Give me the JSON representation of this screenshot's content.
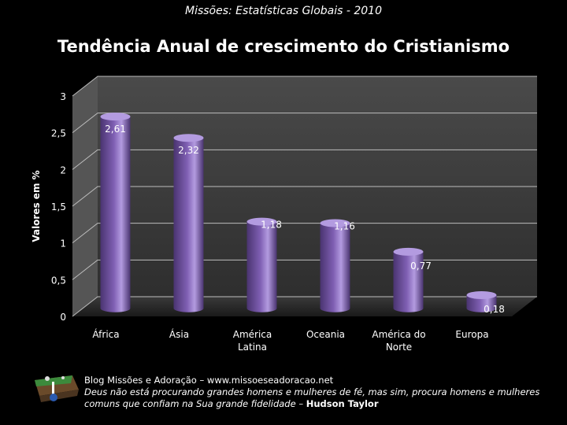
{
  "header": {
    "subtitle": "Missões: Estatísticas Globais - 2010"
  },
  "chart_data": {
    "type": "bar",
    "title": "Tendência Anual de crescimento do Cristianismo",
    "ylabel": "Valores em %",
    "xlabel": "",
    "ylim": [
      0,
      3
    ],
    "yticks": [
      "0",
      "0,5",
      "1",
      "1,5",
      "2",
      "2,5",
      "3"
    ],
    "yticks_values": [
      0,
      0.5,
      1,
      1.5,
      2,
      2.5,
      3
    ],
    "categories": [
      [
        "África"
      ],
      [
        "Ásia"
      ],
      [
        "América",
        "Latina"
      ],
      [
        "Oceania"
      ],
      [
        "América do",
        "Norte"
      ],
      [
        "Europa"
      ]
    ],
    "values": [
      2.61,
      2.32,
      1.18,
      1.16,
      0.77,
      0.18
    ],
    "data_labels": [
      "2,61",
      "2,32",
      "1,18",
      "1,16",
      "0,77",
      "0,18"
    ],
    "colors": {
      "bar": "#7f5fb3",
      "bar_dark": "#4a3470",
      "bar_light": "#b39be0",
      "wall": "#3a3a3a",
      "floor": "#2a2a2a",
      "grid": "#bdbdbd"
    }
  },
  "footer": {
    "line1": "Blog Missões e Adoração – www.missoeseadoracao.net",
    "line2": "Deus não está procurando grandes homens e mulheres de fé, mas sim, procura homens e mulheres",
    "line3": "comuns que confiam na  Sua grande fidelidade – ",
    "author": "Hudson Taylor"
  }
}
